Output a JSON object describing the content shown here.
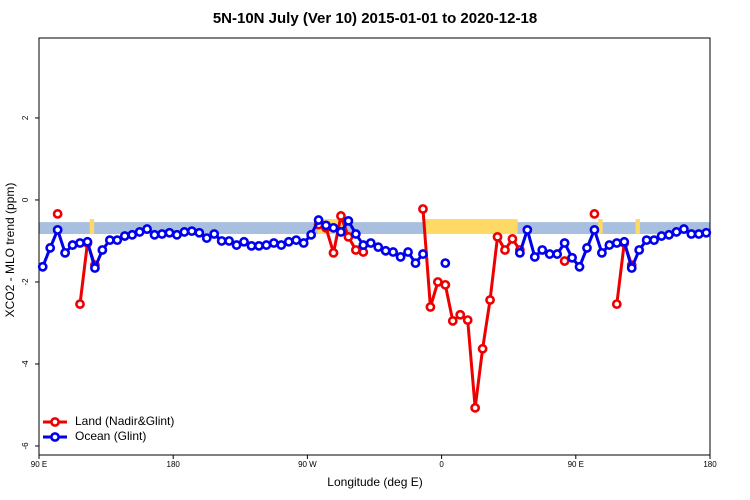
{
  "chart_data": {
    "type": "line",
    "title": "5N-10N July (Ver 10)   2015-01-01 to 2020-12-18",
    "x_label": "Longitude (deg E)",
    "y_label": "XCO2 - MLO trend (ppm)",
    "x": [
      92.5,
      97.5,
      102.5,
      107.5,
      112.5,
      117.5,
      122.5,
      127.5,
      132.5,
      137.5,
      142.5,
      147.5,
      152.5,
      157.5,
      162.5,
      167.5,
      172.5,
      177.5,
      182.5,
      187.5,
      192.5,
      197.5,
      202.5,
      207.5,
      212.5,
      217.5,
      222.5,
      227.5,
      232.5,
      237.5,
      242.5,
      247.5,
      252.5,
      257.5,
      262.5,
      267.5,
      272.5,
      277.5,
      282.5,
      287.5,
      292.5,
      297.5,
      302.5,
      307.5,
      312.5,
      317.5,
      322.5,
      327.5,
      332.5,
      337.5,
      342.5,
      347.5,
      352.5,
      357.5,
      362.5,
      367.5,
      372.5,
      377.5,
      382.5,
      387.5,
      392.5,
      397.5,
      402.5,
      407.5,
      412.5,
      417.5,
      422.5,
      427.5,
      432.5,
      437.5,
      442.5,
      447.5,
      452.5,
      457.5,
      462.5,
      467.5,
      472.5,
      477.5,
      482.5,
      487.5,
      492.5,
      497.5,
      502.5,
      507.5,
      512.5,
      517.5,
      522.5,
      527.5,
      532.5,
      537.5
    ],
    "series": [
      {
        "name": "Land (Nadir&Glint)",
        "color": "#ee0000",
        "values": [
          null,
          null,
          -0.34,
          null,
          null,
          -2.54,
          -1.05,
          -1.59,
          null,
          null,
          null,
          null,
          null,
          null,
          null,
          null,
          null,
          null,
          null,
          null,
          null,
          null,
          null,
          null,
          null,
          null,
          null,
          null,
          null,
          null,
          null,
          null,
          null,
          null,
          null,
          null,
          null,
          -0.6,
          -0.68,
          -1.29,
          -0.39,
          -0.9,
          -1.22,
          -1.27,
          null,
          null,
          null,
          null,
          null,
          null,
          null,
          -0.22,
          -2.61,
          -2.0,
          -2.07,
          -2.95,
          -2.8,
          -2.93,
          -5.07,
          -3.63,
          -2.44,
          -0.9,
          -1.22,
          -0.95,
          -1.22,
          null,
          null,
          null,
          null,
          null,
          -1.49,
          null,
          null,
          null,
          -0.34,
          null,
          null,
          -2.54,
          -1.05,
          -1.59,
          null,
          null,
          null,
          null,
          null,
          null,
          null,
          null,
          null,
          null
        ]
      },
      {
        "name": "Ocean (Glint)",
        "color": "#0000ee",
        "values": [
          -1.63,
          -1.17,
          -0.73,
          -1.29,
          -1.1,
          -1.05,
          -1.02,
          -1.66,
          -1.22,
          -0.98,
          -0.98,
          -0.88,
          -0.85,
          -0.78,
          -0.71,
          -0.85,
          -0.83,
          -0.8,
          -0.85,
          -0.78,
          -0.76,
          -0.8,
          -0.93,
          -0.83,
          -1.0,
          -1.0,
          -1.1,
          -1.02,
          -1.12,
          -1.12,
          -1.1,
          -1.05,
          -1.1,
          -1.02,
          -0.98,
          -1.05,
          -0.85,
          -0.49,
          -0.62,
          -0.68,
          -0.78,
          -0.51,
          -0.83,
          -1.1,
          -1.05,
          -1.15,
          -1.24,
          -1.27,
          -1.39,
          -1.27,
          -1.54,
          -1.32,
          null,
          null,
          -1.54,
          null,
          null,
          null,
          null,
          null,
          null,
          null,
          null,
          null,
          -1.29,
          -0.73,
          -1.39,
          -1.22,
          -1.32,
          -1.32,
          -1.05,
          -1.41,
          -1.63,
          -1.17,
          -0.73,
          -1.29,
          -1.1,
          -1.05,
          -1.02,
          -1.66,
          -1.22,
          -0.98,
          -0.98,
          -0.88,
          -0.85,
          -0.78,
          -0.71,
          -0.83,
          -0.83,
          -0.8
        ]
      }
    ],
    "band_range": [
      -0.83,
      -0.54
    ],
    "band_color": "#a9bfdf",
    "highlight_ranges": [
      [
        124,
        127
      ],
      [
        277,
        295
      ],
      [
        349,
        411
      ],
      [
        465,
        468
      ],
      [
        490,
        493
      ]
    ],
    "highlight_color": "#ffd966",
    "xlim": [
      90,
      540
    ],
    "xticks": [
      {
        "value": 90,
        "label": "90 E"
      },
      180,
      {
        "value": 270,
        "label": "90 W"
      },
      {
        "value": 360,
        "label": "0"
      },
      {
        "value": 450,
        "label": "90 E"
      },
      {
        "value": 540,
        "label": "180"
      }
    ],
    "ylim": [
      -6.22,
      3.95
    ],
    "yticks": [
      -6,
      -4,
      -2,
      0,
      2
    ],
    "grid": false,
    "legend_position": "bottom-left"
  }
}
